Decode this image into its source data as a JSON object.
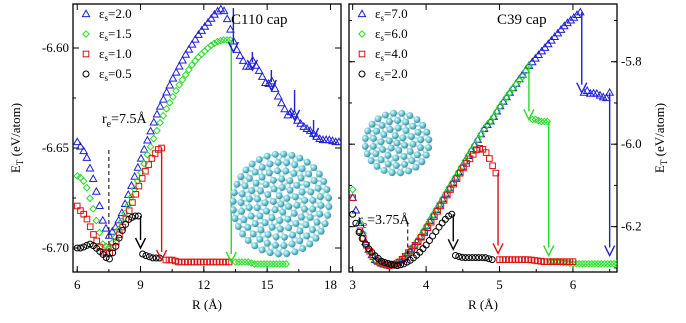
{
  "chart_data": [
    {
      "type": "scatter",
      "title": "C110 cap",
      "xlabel": "R (Å)",
      "ylabel": "E_T (eV/atom)",
      "ylabel_parts": {
        "main": "E",
        "sub": "T",
        "rest": " (eV/atom)"
      },
      "xlim": [
        5.8,
        18.5
      ],
      "ylim": [
        -6.712,
        -6.578
      ],
      "xticks": [
        6,
        9,
        12,
        15,
        18
      ],
      "xtick_labels": [
        "6",
        "9",
        "12",
        "15",
        "18"
      ],
      "yticks": [
        -6.7,
        -6.65,
        -6.6
      ],
      "ytick_labels": [
        "-6.70",
        "-6.65",
        "-6.60"
      ],
      "y_axis_side": "left",
      "legend_position": "top-left",
      "annotation": {
        "text_main": "r",
        "text_sub": "e",
        "text_rest": "=7.5Å",
        "x": 7.5,
        "y_top": -6.651,
        "y_bottom": -6.705
      },
      "series": [
        {
          "name": "εs=2.0",
          "label_main": "ε",
          "label_sub": "s",
          "label_rest": "=2.0",
          "marker": "triangle",
          "color": "#1f1fd6",
          "x": [
            6.0,
            6.2,
            6.4,
            6.6,
            6.8,
            7.0,
            7.2,
            7.5,
            7.8,
            8.1,
            8.4,
            8.7,
            9.0,
            9.3,
            9.6,
            9.9,
            10.2,
            10.5,
            10.8,
            11.1,
            11.4,
            11.7,
            12.0,
            12.3,
            12.6,
            12.9,
            13.2,
            13.35,
            13.6,
            13.9,
            14.1,
            14.3,
            14.6,
            14.8,
            15.0,
            15.2,
            15.4,
            15.6,
            15.8,
            16.0,
            16.2,
            16.4,
            16.6,
            16.8,
            17.0,
            17.2,
            17.4,
            17.6,
            17.8,
            18.0,
            18.2,
            18.4
          ],
          "y": [
            -6.647,
            -6.65,
            -6.653,
            -6.66,
            -6.667,
            -6.676,
            -6.686,
            -6.694,
            -6.69,
            -6.683,
            -6.674,
            -6.665,
            -6.656,
            -6.647,
            -6.638,
            -6.63,
            -6.623,
            -6.616,
            -6.61,
            -6.604,
            -6.599,
            -6.594,
            -6.59,
            -6.586,
            -6.582,
            -6.58,
            -6.588,
            -6.595,
            -6.602,
            -6.607,
            -6.611,
            -6.606,
            -6.611,
            -6.615,
            -6.619,
            -6.616,
            -6.621,
            -6.626,
            -6.63,
            -6.634,
            -6.631,
            -6.636,
            -6.638,
            -6.64,
            -6.641,
            -6.643,
            -6.645,
            -6.646,
            -6.646,
            -6.646,
            -6.647,
            -6.647
          ]
        },
        {
          "name": "εs=1.5",
          "label_main": "ε",
          "label_sub": "s",
          "label_rest": "=1.5",
          "marker": "diamond",
          "color": "#22dd22",
          "x": [
            6.0,
            6.2,
            6.4,
            6.6,
            6.8,
            7.0,
            7.2,
            7.5,
            7.8,
            8.1,
            8.4,
            8.7,
            9.0,
            9.3,
            9.6,
            9.9,
            10.2,
            10.5,
            10.8,
            11.1,
            11.4,
            11.7,
            12.0,
            12.3,
            12.6,
            12.9,
            13.1,
            13.25,
            13.5,
            13.8,
            14.1,
            14.4,
            14.7,
            15.0,
            15.3,
            15.6,
            15.9
          ],
          "y": [
            -6.664,
            -6.665,
            -6.668,
            -6.675,
            -6.682,
            -6.69,
            -6.698,
            -6.7,
            -6.695,
            -6.687,
            -6.679,
            -6.671,
            -6.663,
            -6.654,
            -6.646,
            -6.638,
            -6.631,
            -6.625,
            -6.619,
            -6.614,
            -6.609,
            -6.605,
            -6.602,
            -6.599,
            -6.597,
            -6.596,
            -6.596,
            -6.596,
            -6.707,
            -6.707,
            -6.707,
            -6.708,
            -6.708,
            -6.708,
            -6.708,
            -6.708,
            -6.708
          ]
        },
        {
          "name": "εs=1.0",
          "label_main": "ε",
          "label_sub": "s",
          "label_rest": "=1.0",
          "marker": "square",
          "color": "#dd1111",
          "x": [
            6.0,
            6.2,
            6.4,
            6.6,
            6.8,
            7.0,
            7.2,
            7.5,
            7.8,
            8.1,
            8.4,
            8.7,
            9.0,
            9.3,
            9.6,
            9.9,
            10.0,
            10.2,
            10.5,
            10.8,
            11.1,
            11.4,
            11.7,
            12.0,
            12.3,
            12.6,
            12.9,
            13.2
          ],
          "y": [
            -6.679,
            -6.682,
            -6.684,
            -6.689,
            -6.694,
            -6.698,
            -6.702,
            -6.703,
            -6.698,
            -6.691,
            -6.683,
            -6.675,
            -6.667,
            -6.66,
            -6.654,
            -6.65,
            -6.65,
            -6.706,
            -6.706,
            -6.707,
            -6.707,
            -6.707,
            -6.707,
            -6.707,
            -6.707,
            -6.707,
            -6.707,
            -6.707
          ]
        },
        {
          "name": "εs=0.5",
          "label_main": "ε",
          "label_sub": "s",
          "label_rest": "=0.5",
          "marker": "circle",
          "color": "#000000",
          "x": [
            6.0,
            6.2,
            6.4,
            6.6,
            6.8,
            7.0,
            7.2,
            7.5,
            7.8,
            8.1,
            8.4,
            8.7,
            8.9,
            9.1,
            9.3,
            9.6,
            9.9
          ],
          "y": [
            -6.7,
            -6.7,
            -6.699,
            -6.698,
            -6.699,
            -6.701,
            -6.703,
            -6.706,
            -6.7,
            -6.692,
            -6.686,
            -6.684,
            -6.684,
            -6.703,
            -6.704,
            -6.705,
            -6.705
          ]
        }
      ],
      "jumps": [
        {
          "color": "#22dd22",
          "x": 13.3,
          "from": -6.596,
          "to": -6.707
        },
        {
          "color": "#dd1111",
          "x": 10.0,
          "from": -6.65,
          "to": -6.706
        },
        {
          "color": "#000000",
          "x": 9.0,
          "from": -6.684,
          "to": -6.7
        },
        {
          "color": "#1f1fd6",
          "x": 13.4,
          "from": -6.58,
          "to": -6.602
        },
        {
          "color": "#1f1fd6",
          "x": 14.3,
          "from": -6.602,
          "to": -6.611
        },
        {
          "color": "#1f1fd6",
          "x": 15.2,
          "from": -6.611,
          "to": -6.621
        },
        {
          "color": "#1f1fd6",
          "x": 16.3,
          "from": -6.621,
          "to": -6.636
        },
        {
          "color": "#1f1fd6",
          "x": 17.2,
          "from": -6.636,
          "to": -6.645
        }
      ]
    },
    {
      "type": "scatter",
      "title": "C39 cap",
      "xlabel": "R (Å)",
      "ylabel": "E_T (eV/atom)",
      "ylabel_parts": {
        "main": "E",
        "sub": "T",
        "rest": " (eV/atom)"
      },
      "xlim": [
        2.95,
        6.6
      ],
      "ylim": [
        -6.31,
        -5.66
      ],
      "xticks": [
        3,
        4,
        5,
        6
      ],
      "xtick_labels": [
        "3",
        "4",
        "5",
        "6"
      ],
      "yticks": [
        -6.2,
        -6.0,
        -5.8
      ],
      "ytick_labels": [
        "-6.2",
        "-6.0",
        "-5.8"
      ],
      "y_axis_side": "right",
      "legend_position": "top-left",
      "annotation": {
        "text_main": "r",
        "text_sub": "e",
        "text_rest": "=3.75Å",
        "x": 3.75,
        "y_top": -6.19,
        "y_bottom": -6.29
      },
      "series": [
        {
          "name": "εs=7.0",
          "label_main": "ε",
          "label_sub": "s",
          "label_rest": "=7.0",
          "marker": "triangle",
          "color": "#1f1fd6",
          "x": [
            3.0,
            3.1,
            3.2,
            3.3,
            3.4,
            3.5,
            3.6,
            3.7,
            3.8,
            3.9,
            4.0,
            4.1,
            4.2,
            4.3,
            4.4,
            4.5,
            4.6,
            4.7,
            4.8,
            4.9,
            5.0,
            5.1,
            5.2,
            5.3,
            5.4,
            5.5,
            5.6,
            5.7,
            5.8,
            5.9,
            6.0,
            6.1,
            6.15,
            6.2,
            6.25,
            6.3,
            6.35,
            6.4,
            6.45,
            6.5
          ],
          "y": [
            -6.13,
            -6.2,
            -6.25,
            -6.28,
            -6.29,
            -6.295,
            -6.29,
            -6.275,
            -6.255,
            -6.23,
            -6.2,
            -6.17,
            -6.14,
            -6.11,
            -6.08,
            -6.05,
            -6.02,
            -5.99,
            -5.96,
            -5.94,
            -5.91,
            -5.885,
            -5.86,
            -5.835,
            -5.81,
            -5.79,
            -5.77,
            -5.75,
            -5.73,
            -5.71,
            -5.695,
            -5.68,
            -5.875,
            -5.87,
            -5.88,
            -5.875,
            -5.88,
            -5.885,
            -5.89,
            -5.875
          ]
        },
        {
          "name": "εs=6.0",
          "label_main": "ε",
          "label_sub": "s",
          "label_rest": "=6.0",
          "marker": "diamond",
          "color": "#22dd22",
          "x": [
            3.0,
            3.1,
            3.2,
            3.3,
            3.4,
            3.5,
            3.6,
            3.7,
            3.8,
            3.9,
            4.0,
            4.1,
            4.2,
            4.3,
            4.4,
            4.5,
            4.6,
            4.7,
            4.8,
            4.9,
            5.0,
            5.1,
            5.2,
            5.3,
            5.4,
            5.45,
            5.5,
            5.55,
            5.6,
            5.65,
            5.7,
            5.8,
            6.0,
            6.2,
            6.4,
            6.6
          ],
          "y": [
            -6.11,
            -6.19,
            -6.25,
            -6.28,
            -6.29,
            -6.295,
            -6.29,
            -6.275,
            -6.255,
            -6.23,
            -6.2,
            -6.17,
            -6.14,
            -6.11,
            -6.08,
            -6.05,
            -6.02,
            -5.99,
            -5.96,
            -5.94,
            -5.91,
            -5.885,
            -5.86,
            -5.84,
            -5.81,
            -5.94,
            -5.94,
            -5.945,
            -5.945,
            -5.945,
            -6.285,
            -6.285,
            -6.29,
            -6.29,
            -6.29,
            -6.29
          ]
        },
        {
          "name": "εs=4.0",
          "label_main": "ε",
          "label_sub": "s",
          "label_rest": "=4.0",
          "marker": "square",
          "color": "#dd1111",
          "x": [
            3.0,
            3.1,
            3.2,
            3.3,
            3.4,
            3.5,
            3.6,
            3.7,
            3.8,
            3.9,
            4.0,
            4.1,
            4.2,
            4.3,
            4.4,
            4.5,
            4.6,
            4.7,
            4.75,
            4.8,
            4.85,
            4.9,
            4.95,
            5.0,
            5.2,
            5.4,
            5.6,
            5.8,
            6.0
          ],
          "y": [
            -6.13,
            -6.21,
            -6.25,
            -6.28,
            -6.29,
            -6.295,
            -6.29,
            -6.275,
            -6.255,
            -6.235,
            -6.21,
            -6.18,
            -6.15,
            -6.12,
            -6.09,
            -6.06,
            -6.035,
            -6.01,
            -6.01,
            -6.015,
            -6.03,
            -6.05,
            -6.07,
            -6.28,
            -6.28,
            -6.28,
            -6.285,
            -6.285,
            -6.285
          ]
        },
        {
          "name": "εs=2.0",
          "label_main": "ε",
          "label_sub": "s",
          "label_rest": "=2.0",
          "marker": "circle",
          "color": "#000000",
          "x": [
            3.0,
            3.1,
            3.2,
            3.3,
            3.4,
            3.5,
            3.6,
            3.7,
            3.8,
            3.9,
            4.0,
            4.1,
            4.2,
            4.3,
            4.35,
            4.4,
            4.5,
            4.6,
            4.7,
            4.8,
            4.9
          ],
          "y": [
            -6.17,
            -6.22,
            -6.25,
            -6.27,
            -6.285,
            -6.29,
            -6.295,
            -6.29,
            -6.28,
            -6.265,
            -6.245,
            -6.22,
            -6.195,
            -6.175,
            -6.17,
            -6.27,
            -6.275,
            -6.275,
            -6.275,
            -6.275,
            -6.28
          ]
        }
      ],
      "jumps": [
        {
          "color": "#1f1fd6",
          "x": 6.12,
          "from": -5.68,
          "to": -5.875
        },
        {
          "color": "#1f1fd6",
          "x": 6.5,
          "from": -5.875,
          "to": -6.27
        },
        {
          "color": "#22dd22",
          "x": 5.4,
          "from": -5.81,
          "to": -5.94
        },
        {
          "color": "#22dd22",
          "x": 5.67,
          "from": -5.945,
          "to": -6.27
        },
        {
          "color": "#dd1111",
          "x": 4.98,
          "from": -6.07,
          "to": -6.265
        },
        {
          "color": "#000000",
          "x": 4.37,
          "from": -6.17,
          "to": -6.255
        }
      ]
    }
  ]
}
